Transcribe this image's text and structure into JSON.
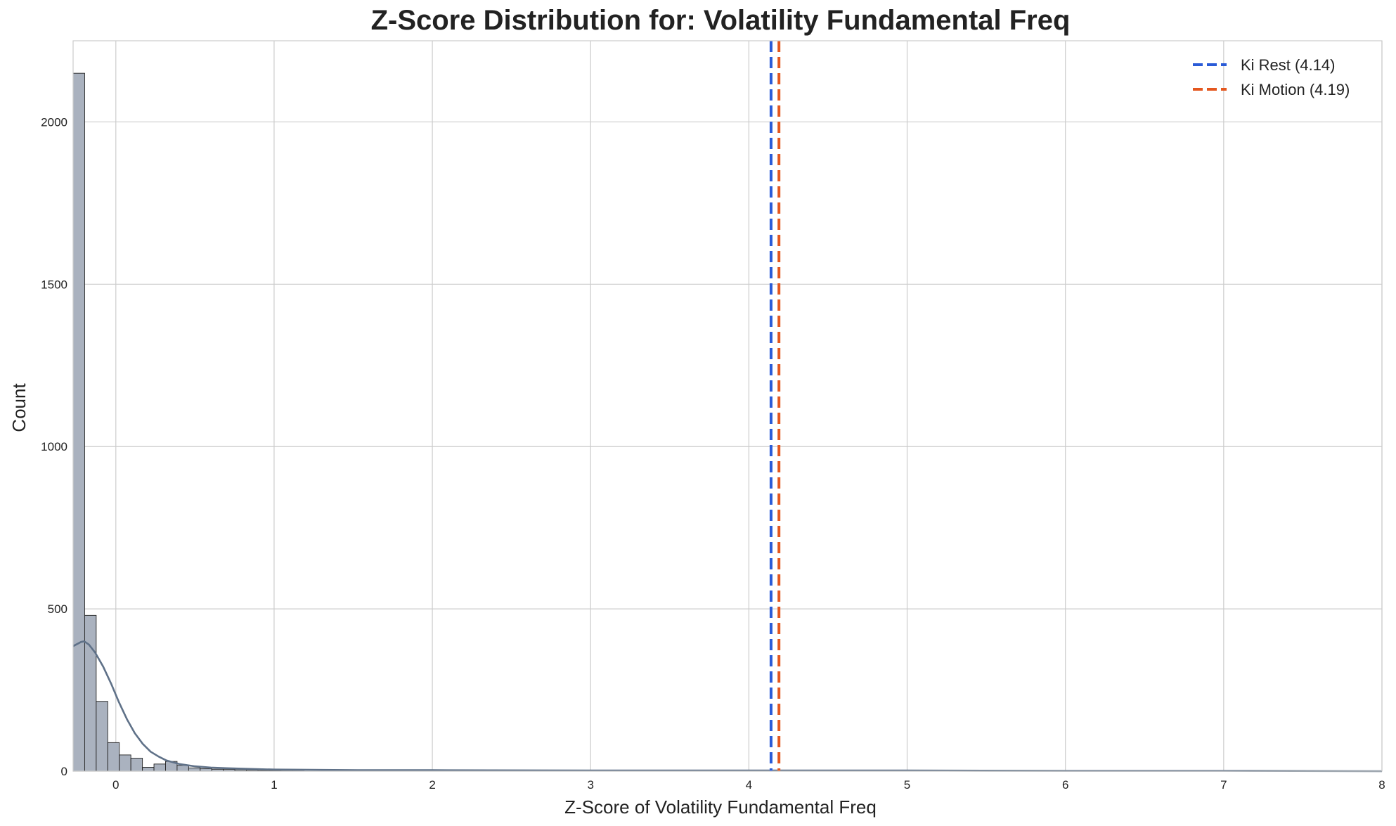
{
  "chart_data": {
    "type": "bar",
    "subtype": "histogram-with-kde",
    "title": "Z-Score Distribution for: Volatility Fundamental Freq",
    "xlabel": "Z-Score of Volatility Fundamental Freq",
    "ylabel": "Count",
    "xlim": [
      -0.27,
      8
    ],
    "ylim": [
      0,
      2250
    ],
    "xticks": [
      0,
      1,
      2,
      3,
      4,
      5,
      6,
      7,
      8
    ],
    "yticks": [
      0,
      500,
      1000,
      1500,
      2000
    ],
    "grid": true,
    "legend_position": "top-right",
    "bar_color": "#aab2bf",
    "bar_edge_color": "#222222",
    "kde_color": "#5f7188",
    "histogram": {
      "bin_width": 0.073,
      "bin_start": -0.27,
      "counts": [
        2150,
        480,
        215,
        88,
        50,
        40,
        12,
        22,
        30,
        18,
        10,
        8,
        6,
        5,
        4,
        3,
        2,
        2,
        1,
        1
      ]
    },
    "kde": {
      "x": [
        -0.27,
        -0.22,
        -0.2,
        -0.17,
        -0.13,
        -0.08,
        -0.03,
        0.02,
        0.07,
        0.12,
        0.17,
        0.22,
        0.27,
        0.32,
        0.4,
        0.5,
        0.6,
        0.7,
        0.85,
        1.0,
        1.3,
        1.6,
        2.0,
        3.0,
        4.0,
        5.0,
        6.0,
        7.0,
        8.0
      ],
      "y": [
        385,
        398,
        400,
        390,
        365,
        322,
        270,
        212,
        160,
        117,
        84,
        60,
        45,
        33,
        22,
        15,
        11,
        9,
        7,
        5,
        4,
        3,
        3,
        2,
        2,
        2,
        1,
        1,
        0
      ]
    },
    "vlines": [
      {
        "name": "Ki Rest (4.14)",
        "x": 4.14,
        "color": "#2a5bd7",
        "style": "dashed"
      },
      {
        "name": "Ki Motion (4.19)",
        "x": 4.19,
        "color": "#e4571f",
        "style": "dashed"
      }
    ]
  }
}
